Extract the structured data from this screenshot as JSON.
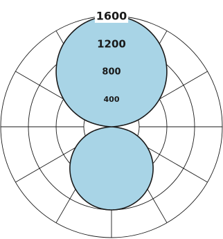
{
  "chart_data": {
    "type": "polar",
    "title": "",
    "radial_ticks": [
      {
        "value": 400,
        "label": "400"
      },
      {
        "value": 800,
        "label": "800"
      },
      {
        "value": 1200,
        "label": "1200"
      },
      {
        "value": 1600,
        "label": "1600"
      }
    ],
    "rlim": [
      0,
      1600
    ],
    "grid": true,
    "angular_spokes_deg": [
      0,
      30,
      60,
      90,
      120,
      150,
      180,
      210,
      240,
      270,
      300,
      330
    ],
    "series": [
      {
        "color": "#a8d4e6",
        "points": [
          {
            "angle_deg": 0,
            "r": 1600
          },
          {
            "angle_deg": 15,
            "r": 1545
          },
          {
            "angle_deg": 30,
            "r": 1385
          },
          {
            "angle_deg": 45,
            "r": 1130
          },
          {
            "angle_deg": 60,
            "r": 800
          },
          {
            "angle_deg": 75,
            "r": 415
          },
          {
            "angle_deg": 90,
            "r": 0
          },
          {
            "angle_deg": 105,
            "r": 310
          },
          {
            "angle_deg": 120,
            "r": 600
          },
          {
            "angle_deg": 135,
            "r": 850
          },
          {
            "angle_deg": 150,
            "r": 1040
          },
          {
            "angle_deg": 165,
            "r": 1160
          },
          {
            "angle_deg": 180,
            "r": 1200
          },
          {
            "angle_deg": 195,
            "r": 1160
          },
          {
            "angle_deg": 210,
            "r": 1040
          },
          {
            "angle_deg": 225,
            "r": 850
          },
          {
            "angle_deg": 240,
            "r": 600
          },
          {
            "angle_deg": 255,
            "r": 310
          },
          {
            "angle_deg": 270,
            "r": 0
          },
          {
            "angle_deg": 285,
            "r": 415
          },
          {
            "angle_deg": 300,
            "r": 800
          },
          {
            "angle_deg": 315,
            "r": 1130
          },
          {
            "angle_deg": 330,
            "r": 1385
          },
          {
            "angle_deg": 345,
            "r": 1545
          }
        ]
      }
    ]
  }
}
